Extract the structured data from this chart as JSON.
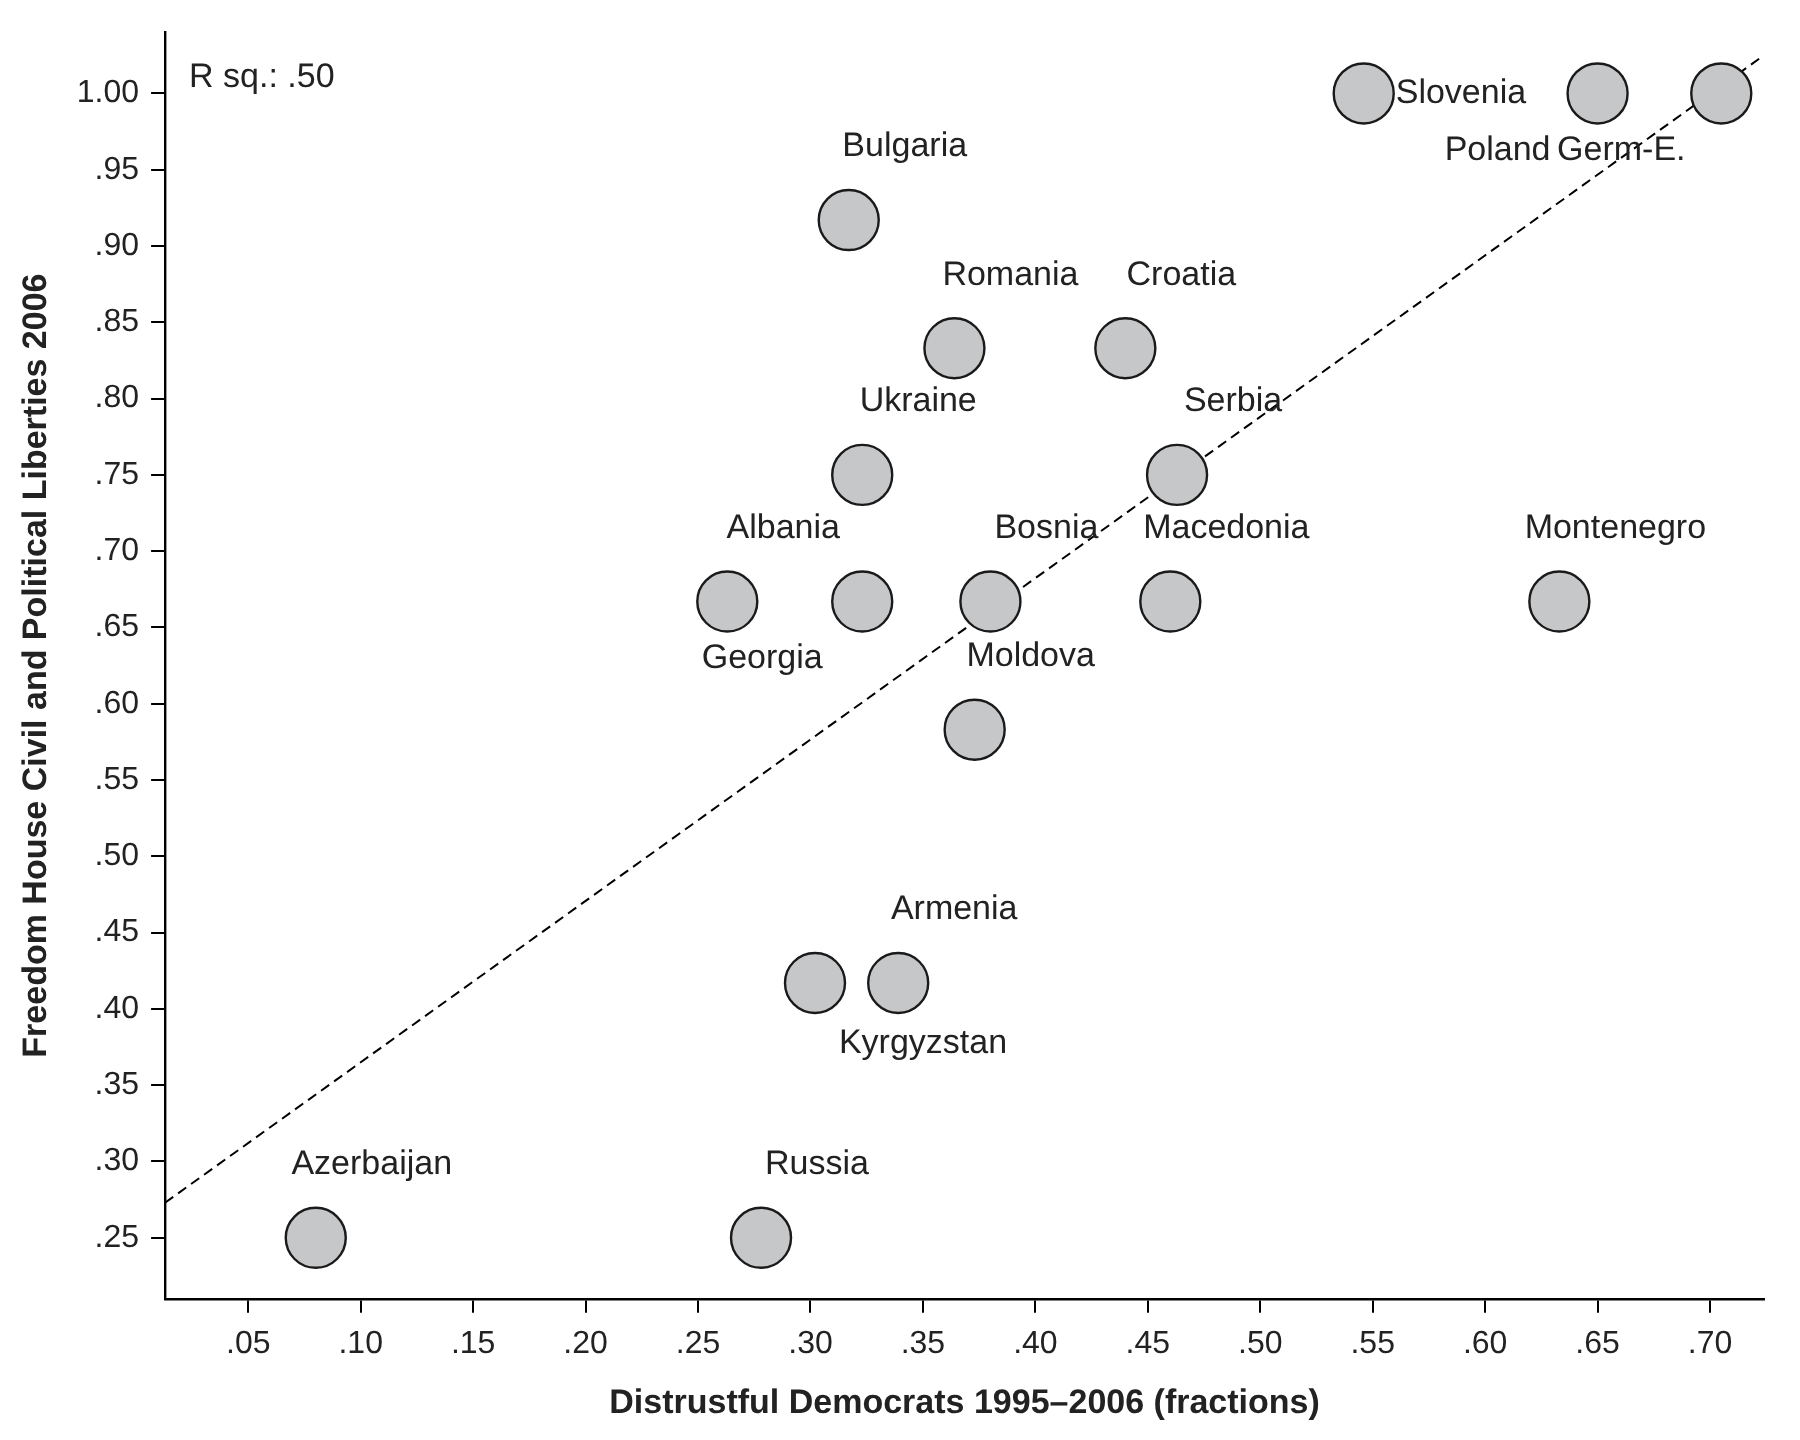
{
  "chart_data": {
    "type": "scatter",
    "xlabel": "Distrustful Democrats 1995–2006 (fractions)",
    "ylabel": "Freedom House Civil and Political Liberties 2006",
    "xlim": [
      0.013,
      0.724
    ],
    "ylim": [
      0.21,
      1.04
    ],
    "xticks": [
      {
        "value": 0.05,
        "label": ".05"
      },
      {
        "value": 0.1,
        "label": ".10"
      },
      {
        "value": 0.15,
        "label": ".15"
      },
      {
        "value": 0.2,
        "label": ".20"
      },
      {
        "value": 0.25,
        "label": ".25"
      },
      {
        "value": 0.3,
        "label": ".30"
      },
      {
        "value": 0.35,
        "label": ".35"
      },
      {
        "value": 0.4,
        "label": ".40"
      },
      {
        "value": 0.45,
        "label": ".45"
      },
      {
        "value": 0.5,
        "label": ".50"
      },
      {
        "value": 0.55,
        "label": ".55"
      },
      {
        "value": 0.6,
        "label": ".60"
      },
      {
        "value": 0.65,
        "label": ".65"
      },
      {
        "value": 0.7,
        "label": ".70"
      }
    ],
    "yticks": [
      {
        "value": 0.25,
        "label": ".25"
      },
      {
        "value": 0.3,
        "label": ".30"
      },
      {
        "value": 0.35,
        "label": ".35"
      },
      {
        "value": 0.4,
        "label": ".40"
      },
      {
        "value": 0.45,
        "label": ".45"
      },
      {
        "value": 0.5,
        "label": ".50"
      },
      {
        "value": 0.55,
        "label": ".55"
      },
      {
        "value": 0.6,
        "label": ".60"
      },
      {
        "value": 0.65,
        "label": ".65"
      },
      {
        "value": 0.7,
        "label": ".70"
      },
      {
        "value": 0.75,
        "label": ".75"
      },
      {
        "value": 0.8,
        "label": ".80"
      },
      {
        "value": 0.85,
        "label": ".85"
      },
      {
        "value": 0.9,
        "label": ".90"
      },
      {
        "value": 0.95,
        "label": ".95"
      },
      {
        "value": 1.0,
        "label": "1.00"
      }
    ],
    "grid": false,
    "legend": false,
    "marker": "circle",
    "series": [
      {
        "color": "#c6c7c9",
        "x": [
          0.08,
          0.278,
          0.302,
          0.339,
          0.263,
          0.323,
          0.323,
          0.317,
          0.364,
          0.44,
          0.463,
          0.38,
          0.46,
          0.373,
          0.633,
          0.546,
          0.65,
          0.705
        ],
        "values": [
          0.25,
          0.25,
          0.417,
          0.417,
          0.667,
          0.667,
          0.75,
          0.917,
          0.833,
          0.833,
          0.75,
          0.667,
          0.667,
          0.583,
          0.667,
          1.0,
          1.0,
          1.0
        ]
      },
      {
        "type": "line",
        "color": "#000000",
        "line_style": "dashed",
        "marker": "none",
        "x": [
          0.013,
          0.724
        ],
        "values": [
          0.273,
          1.025
        ]
      }
    ],
    "annotations": [
      "R sq.: .50",
      {
        "text": "Azerbaijan",
        "x": 0.08,
        "y": 0.25
      },
      {
        "text": "Russia",
        "x": 0.278,
        "y": 0.25
      },
      {
        "text": "Kyrgyzstan",
        "x": 0.302,
        "y": 0.417
      },
      {
        "text": "Armenia",
        "x": 0.339,
        "y": 0.417
      },
      {
        "text": "Albania",
        "x": 0.263,
        "y": 0.667
      },
      {
        "text": "Georgia",
        "x": 0.323,
        "y": 0.667
      },
      {
        "text": "Ukraine",
        "x": 0.323,
        "y": 0.75
      },
      {
        "text": "Bulgaria",
        "x": 0.317,
        "y": 0.917
      },
      {
        "text": "Romania",
        "x": 0.364,
        "y": 0.833
      },
      {
        "text": "Croatia",
        "x": 0.44,
        "y": 0.833
      },
      {
        "text": "Serbia",
        "x": 0.463,
        "y": 0.75
      },
      {
        "text": "Bosnia",
        "x": 0.38,
        "y": 0.667
      },
      {
        "text": "Macedonia",
        "x": 0.46,
        "y": 0.667
      },
      {
        "text": "Moldova",
        "x": 0.373,
        "y": 0.583
      },
      {
        "text": "Montenegro",
        "x": 0.633,
        "y": 0.667
      },
      {
        "text": "Slovenia",
        "x": 0.546,
        "y": 1.0
      },
      {
        "text": "Poland",
        "x": 0.65,
        "y": 1.0
      },
      {
        "text": "Germ-E.",
        "x": 0.705,
        "y": 1.0
      }
    ]
  }
}
